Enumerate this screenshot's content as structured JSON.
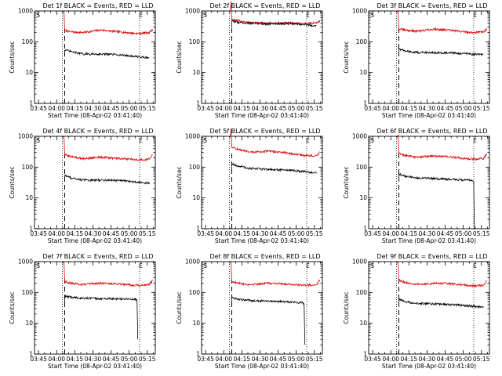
{
  "figure": {
    "x_tick_labels": [
      "03:45",
      "04:00",
      "04:15",
      "04:30",
      "04:45",
      "05:00",
      "05:15"
    ],
    "y_tick_labels": [
      "1",
      "10",
      "100",
      "1000"
    ],
    "y_label": "Counts/sec",
    "x_label": "Start Time (08-Apr-02 03:41:40)",
    "marker_start": "S",
    "marker_end": "E",
    "colors": {
      "events": "#000000",
      "lld": "#dd0000",
      "axes": "#000000"
    }
  },
  "chart_data": [
    {
      "type": "line",
      "title": "Det 1f BLACK = Events, RED = LLD",
      "xlabel": "Start Time (08-Apr-02 03:41:40)",
      "ylabel": "Counts/sec",
      "x_unit": "minutes after 03:41:40",
      "xlim": [
        0,
        100
      ],
      "ylim": [
        1,
        1000
      ],
      "yscale": "log",
      "lines": {
        "dotted": [
          23,
          87
        ],
        "dashed": [
          25
        ],
        "S": 3,
        "E": 88
      },
      "series": [
        {
          "name": "LLD",
          "color": "#dd0000",
          "x": [
            25,
            30,
            40,
            55,
            70,
            85,
            95,
            98
          ],
          "y": [
            230,
            210,
            200,
            240,
            210,
            185,
            200,
            260
          ]
        },
        {
          "name": "Events",
          "color": "#000000",
          "x": [
            25,
            30,
            40,
            55,
            70,
            85,
            95
          ],
          "y": [
            55,
            48,
            40,
            40,
            38,
            33,
            30
          ]
        }
      ]
    },
    {
      "type": "line",
      "title": "Det 2f BLACK = Events, RED = LLD",
      "xlabel": "Start Time (08-Apr-02 03:41:40)",
      "ylabel": "Counts/sec",
      "x_unit": "minutes after 03:41:40",
      "xlim": [
        0,
        100
      ],
      "ylim": [
        1,
        1000
      ],
      "yscale": "log",
      "lines": {
        "dotted": [
          23,
          87
        ],
        "dashed": [
          25
        ],
        "S": 3,
        "E": 88
      },
      "series": [
        {
          "name": "LLD",
          "color": "#dd0000",
          "x": [
            25,
            30,
            40,
            55,
            70,
            85,
            95,
            98
          ],
          "y": [
            520,
            480,
            420,
            400,
            410,
            390,
            410,
            480
          ]
        },
        {
          "name": "Events",
          "color": "#000000",
          "x": [
            25,
            30,
            40,
            55,
            70,
            85,
            95
          ],
          "y": [
            480,
            430,
            400,
            380,
            390,
            360,
            330
          ]
        }
      ]
    },
    {
      "type": "line",
      "title": "Det 3f BLACK = Events, RED = LLD",
      "xlabel": "Start Time (08-Apr-02 03:41:40)",
      "ylabel": "Counts/sec",
      "x_unit": "minutes after 03:41:40",
      "xlim": [
        0,
        100
      ],
      "ylim": [
        1,
        1000
      ],
      "yscale": "log",
      "lines": {
        "dotted": [
          23,
          87
        ],
        "dashed": [
          25
        ],
        "S": 3,
        "E": 88
      },
      "series": [
        {
          "name": "LLD",
          "color": "#dd0000",
          "x": [
            25,
            30,
            40,
            55,
            70,
            85,
            95,
            98
          ],
          "y": [
            260,
            240,
            220,
            260,
            230,
            200,
            210,
            260
          ]
        },
        {
          "name": "Events",
          "color": "#000000",
          "x": [
            25,
            30,
            40,
            55,
            70,
            85,
            95
          ],
          "y": [
            60,
            50,
            45,
            45,
            43,
            40,
            38
          ]
        }
      ]
    },
    {
      "type": "line",
      "title": "Det 4f BLACK = Events, RED = LLD",
      "xlabel": "Start Time (08-Apr-02 03:41:40)",
      "ylabel": "Counts/sec",
      "x_unit": "minutes after 03:41:40",
      "xlim": [
        0,
        100
      ],
      "ylim": [
        1,
        1000
      ],
      "yscale": "log",
      "lines": {
        "dotted": [
          23,
          87
        ],
        "dashed": [
          25
        ],
        "S": 3,
        "E": 88
      },
      "series": [
        {
          "name": "LLD",
          "color": "#dd0000",
          "x": [
            25,
            30,
            40,
            55,
            70,
            85,
            95,
            98
          ],
          "y": [
            250,
            220,
            190,
            210,
            190,
            170,
            180,
            250
          ]
        },
        {
          "name": "Events",
          "color": "#000000",
          "x": [
            25,
            30,
            40,
            55,
            70,
            85,
            95
          ],
          "y": [
            55,
            45,
            38,
            38,
            37,
            33,
            30
          ]
        }
      ]
    },
    {
      "type": "line",
      "title": "Det 5f BLACK = Events, RED = LLD",
      "xlabel": "Start Time (08-Apr-02 03:41:40)",
      "ylabel": "Counts/sec",
      "x_unit": "minutes after 03:41:40",
      "xlim": [
        0,
        100
      ],
      "ylim": [
        1,
        1000
      ],
      "yscale": "log",
      "lines": {
        "dotted": [
          23,
          87
        ],
        "dashed": [
          25
        ],
        "S": 3,
        "E": 88
      },
      "series": [
        {
          "name": "LLD",
          "color": "#dd0000",
          "x": [
            25,
            30,
            40,
            55,
            70,
            85,
            95,
            98
          ],
          "y": [
            450,
            380,
            300,
            330,
            290,
            240,
            230,
            300
          ]
        },
        {
          "name": "Events",
          "color": "#000000",
          "x": [
            25,
            30,
            40,
            55,
            70,
            85,
            95
          ],
          "y": [
            130,
            110,
            90,
            85,
            80,
            72,
            65
          ]
        }
      ]
    },
    {
      "type": "line",
      "title": "Det 6f BLACK = Events, RED = LLD",
      "xlabel": "Start Time (08-Apr-02 03:41:40)",
      "ylabel": "Counts/sec",
      "x_unit": "minutes after 03:41:40",
      "xlim": [
        0,
        100
      ],
      "ylim": [
        1,
        1000
      ],
      "yscale": "log",
      "lines": {
        "dotted": [
          23,
          87
        ],
        "dashed": [
          25
        ],
        "S": 3,
        "E": 88
      },
      "series": [
        {
          "name": "LLD",
          "color": "#dd0000",
          "x": [
            25,
            30,
            40,
            55,
            70,
            85,
            95,
            98
          ],
          "y": [
            280,
            240,
            210,
            230,
            210,
            180,
            190,
            260
          ]
        },
        {
          "name": "Events",
          "color": "#000000",
          "x": [
            25,
            30,
            40,
            55,
            70,
            85,
            87,
            87.5
          ],
          "y": [
            60,
            50,
            45,
            42,
            40,
            37,
            35,
            1
          ]
        }
      ]
    },
    {
      "type": "line",
      "title": "Det 7f BLACK = Events, RED = LLD",
      "xlabel": "Start Time (08-Apr-02 03:41:40)",
      "ylabel": "Counts/sec",
      "x_unit": "minutes after 03:41:40",
      "xlim": [
        0,
        100
      ],
      "ylim": [
        1,
        1000
      ],
      "yscale": "log",
      "lines": {
        "dotted": [
          23,
          87
        ],
        "dashed": [
          25
        ],
        "S": 3,
        "E": 88
      },
      "series": [
        {
          "name": "LLD",
          "color": "#dd0000",
          "x": [
            25,
            30,
            40,
            55,
            70,
            85,
            95,
            98
          ],
          "y": [
            230,
            200,
            180,
            200,
            190,
            170,
            180,
            250
          ]
        },
        {
          "name": "Events",
          "color": "#000000",
          "x": [
            25,
            30,
            40,
            55,
            70,
            82,
            85,
            85.5
          ],
          "y": [
            75,
            70,
            65,
            63,
            62,
            60,
            58,
            3
          ]
        }
      ]
    },
    {
      "type": "line",
      "title": "Det 8f BLACK = Events, RED = LLD",
      "xlabel": "Start Time (08-Apr-02 03:41:40)",
      "ylabel": "Counts/sec",
      "x_unit": "minutes after 03:41:40",
      "xlim": [
        0,
        100
      ],
      "ylim": [
        1,
        1000
      ],
      "yscale": "log",
      "lines": {
        "dotted": [
          23,
          87
        ],
        "dashed": [
          25
        ],
        "S": 3,
        "E": 88
      },
      "series": [
        {
          "name": "LLD",
          "color": "#dd0000",
          "x": [
            25,
            30,
            40,
            55,
            70,
            85,
            95,
            98
          ],
          "y": [
            230,
            200,
            180,
            200,
            190,
            170,
            180,
            250
          ]
        },
        {
          "name": "Events",
          "color": "#000000",
          "x": [
            25,
            30,
            40,
            55,
            70,
            82,
            85,
            85.5
          ],
          "y": [
            70,
            60,
            55,
            53,
            50,
            47,
            45,
            2
          ]
        }
      ]
    },
    {
      "type": "line",
      "title": "Det 9f BLACK = Events, RED = LLD",
      "xlabel": "Start Time (08-Apr-02 03:41:40)",
      "ylabel": "Counts/sec",
      "x_unit": "minutes after 03:41:40",
      "xlim": [
        0,
        100
      ],
      "ylim": [
        1,
        1000
      ],
      "yscale": "log",
      "lines": {
        "dotted": [
          23,
          87
        ],
        "dashed": [
          25
        ],
        "S": 3,
        "E": 88
      },
      "series": [
        {
          "name": "LLD",
          "color": "#dd0000",
          "x": [
            25,
            30,
            40,
            55,
            70,
            85,
            95,
            98
          ],
          "y": [
            250,
            210,
            180,
            200,
            190,
            165,
            170,
            240
          ]
        },
        {
          "name": "Events",
          "color": "#000000",
          "x": [
            25,
            30,
            40,
            55,
            70,
            85,
            95
          ],
          "y": [
            60,
            50,
            45,
            42,
            40,
            36,
            33
          ]
        }
      ]
    }
  ]
}
